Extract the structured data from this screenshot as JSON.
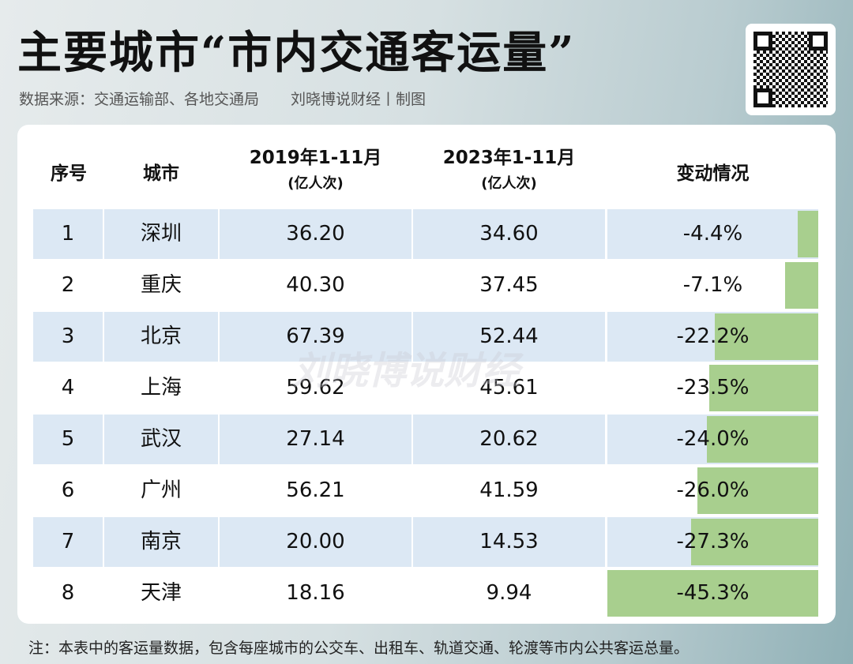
{
  "title": "主要城市“市内交通客运量”",
  "source": "数据来源：交通运输部、各地交通局",
  "author": "刘晓博说财经丨制图",
  "watermark": "刘晓博说财经",
  "headers": {
    "index": "序号",
    "city": "城市",
    "y2019": "2019年1-11月",
    "y2019_unit": "(亿人次)",
    "y2023": "2023年1-11月",
    "y2023_unit": "(亿人次)",
    "change": "变动情况"
  },
  "rows": [
    {
      "index": "1",
      "city": "深圳",
      "y2019": "36.20",
      "y2023": "34.60",
      "change": "-4.4%",
      "pct": 4.4
    },
    {
      "index": "2",
      "city": "重庆",
      "y2019": "40.30",
      "y2023": "37.45",
      "change": "-7.1%",
      "pct": 7.1
    },
    {
      "index": "3",
      "city": "北京",
      "y2019": "67.39",
      "y2023": "52.44",
      "change": "-22.2%",
      "pct": 22.2
    },
    {
      "index": "4",
      "city": "上海",
      "y2019": "59.62",
      "y2023": "45.61",
      "change": "-23.5%",
      "pct": 23.5
    },
    {
      "index": "5",
      "city": "武汉",
      "y2019": "27.14",
      "y2023": "20.62",
      "change": "-24.0%",
      "pct": 24.0
    },
    {
      "index": "6",
      "city": "广州",
      "y2019": "56.21",
      "y2023": "41.59",
      "change": "-26.0%",
      "pct": 26.0
    },
    {
      "index": "7",
      "city": "南京",
      "y2019": "20.00",
      "y2023": "14.53",
      "change": "-27.3%",
      "pct": 27.3
    },
    {
      "index": "8",
      "city": "天津",
      "y2019": "18.16",
      "y2023": "9.94",
      "change": "-45.3%",
      "pct": 45.3
    }
  ],
  "bar_color": "#a8cf8e",
  "note": "注：本表中的客运量数据，包含每座城市的公交车、出租车、轨道交通、轮渡等市内公共客运总量。"
}
